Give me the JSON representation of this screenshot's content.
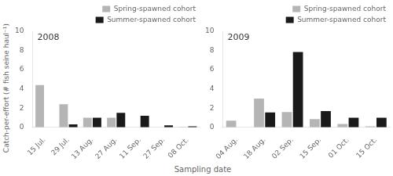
{
  "chart_data": [
    {
      "type": "bar",
      "annotation": "2008",
      "ylabel": "Catch-per-effort (# fish seine haul⁻¹)",
      "xlabel": "Sampling date",
      "categories": [
        "15 Jul.",
        "29 Jul.",
        "13 Aug.",
        "27 Aug.",
        "11 Sep.",
        "27 Sep.",
        "08 Oct."
      ],
      "series": [
        {
          "name": "Spring-spawned cohort",
          "color": "#b5b5b5",
          "values": [
            4.4,
            2.4,
            1.0,
            1.0,
            0.0,
            0.0,
            0.05
          ]
        },
        {
          "name": "Summer-spawned cohort",
          "color": "#1a1a1a",
          "values": [
            0.0,
            0.3,
            1.0,
            1.5,
            1.2,
            0.2,
            0.1
          ]
        }
      ],
      "ylim": [
        0,
        10
      ],
      "yticks": [
        0,
        2,
        4,
        6,
        8,
        10
      ],
      "grid": false,
      "legend": "upper right"
    },
    {
      "type": "bar",
      "annotation": "2009",
      "categories": [
        "04 Aug.",
        "18 Aug.",
        "02 Sep.",
        "15 Sep.",
        "01 Oct.",
        "15 Oct."
      ],
      "series": [
        {
          "name": "Spring-spawned cohort",
          "color": "#b5b5b5",
          "values": [
            0.7,
            3.0,
            1.6,
            0.85,
            0.35,
            0.1
          ]
        },
        {
          "name": "Summer-spawned cohort",
          "color": "#1a1a1a",
          "values": [
            0.0,
            1.55,
            7.85,
            1.7,
            1.0,
            1.0
          ]
        }
      ],
      "ylim": [
        0,
        10
      ],
      "yticks": [
        0,
        2,
        4,
        6,
        8,
        10
      ],
      "grid": false,
      "legend": "upper right"
    }
  ]
}
